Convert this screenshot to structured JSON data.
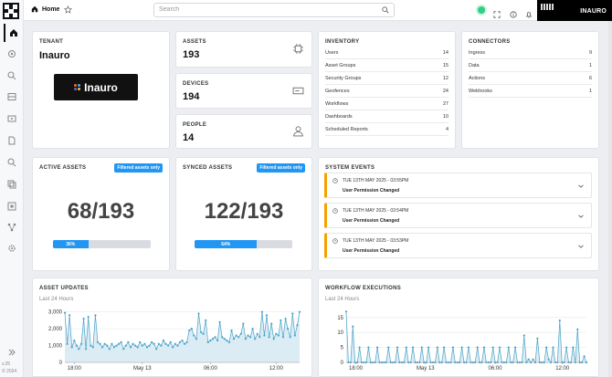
{
  "sidebar": {
    "items": [
      {
        "icon": "home-icon"
      },
      {
        "icon": "asset-icon"
      },
      {
        "icon": "search-icon"
      },
      {
        "icon": "list-icon"
      },
      {
        "icon": "screen-icon"
      },
      {
        "icon": "document-icon"
      },
      {
        "icon": "zoom-icon"
      },
      {
        "icon": "copy-icon"
      },
      {
        "icon": "grid-icon"
      },
      {
        "icon": "workflow-icon"
      },
      {
        "icon": "settings-icon"
      }
    ],
    "expand_icon": "double-chevron-icon",
    "version": "v.25",
    "copyright": "© 2024"
  },
  "topbar": {
    "home_label": "Home",
    "search_placeholder": "Search",
    "user_name": "INAURO",
    "status_color": "#2ecf86"
  },
  "tenant": {
    "title": "TENANT",
    "name": "Inauro",
    "logo_text": "Inauro"
  },
  "assets": {
    "title": "ASSETS",
    "value": "193"
  },
  "devices": {
    "title": "DEVICES",
    "value": "194"
  },
  "people": {
    "title": "PEOPLE",
    "value": "14"
  },
  "inventory": {
    "title": "INVENTORY",
    "rows": [
      {
        "label": "Users",
        "value": "14"
      },
      {
        "label": "Asset Groups",
        "value": "15"
      },
      {
        "label": "Security Groups",
        "value": "12"
      },
      {
        "label": "Geofences",
        "value": "24"
      },
      {
        "label": "Workflows",
        "value": "27"
      },
      {
        "label": "Dashboards",
        "value": "10"
      },
      {
        "label": "Scheduled Reports",
        "value": "4"
      }
    ]
  },
  "connectors": {
    "title": "CONNECTORS",
    "rows": [
      {
        "label": "Ingress",
        "value": "9"
      },
      {
        "label": "Data",
        "value": "1"
      },
      {
        "label": "Actions",
        "value": "6"
      },
      {
        "label": "Webhooks",
        "value": "1"
      }
    ]
  },
  "active_assets": {
    "title": "ACTIVE ASSETS",
    "badge": "Filtered assets only",
    "ratio": "68/193",
    "percent_label": "36%",
    "fraction": 0.36
  },
  "synced_assets": {
    "title": "SYNCED ASSETS",
    "badge": "Filtered assets only",
    "ratio": "122/193",
    "percent_label": "64%",
    "fraction": 0.64
  },
  "system_events": {
    "title": "SYSTEM EVENTS",
    "accent": "#f2a300",
    "items": [
      {
        "time": "TUE 13TH MAY 2025 - 03:55PM",
        "message": "User Permission Changed"
      },
      {
        "time": "TUE 13TH MAY 2025 - 03:54PM",
        "message": "User Permission Changed"
      },
      {
        "time": "TUE 13TH MAY 2025 - 03:53PM",
        "message": "User Permission Changed"
      }
    ]
  },
  "asset_updates": {
    "title": "ASSET UPDATES",
    "subtitle": "Last 24 Hours"
  },
  "workflow_executions": {
    "title": "WORKFLOW EXECUTIONS",
    "subtitle": "Last 24 Hours"
  },
  "chart_data": [
    {
      "type": "area",
      "title": "ASSET UPDATES",
      "color": "#4aa3c9",
      "ylim": [
        0,
        3200
      ],
      "y_ticks": [
        "0",
        "1,000",
        "2,000",
        "3,000"
      ],
      "x_ticks": [
        "18:00",
        "May 13",
        "06:00",
        "12:00"
      ],
      "grid": true,
      "values": [
        2950,
        1100,
        2800,
        900,
        1300,
        1000,
        800,
        1100,
        2600,
        800,
        2700,
        1000,
        900,
        2800,
        1200,
        1100,
        900,
        1100,
        1000,
        800,
        1100,
        900,
        1000,
        1100,
        1200,
        800,
        1000,
        1200,
        900,
        1100,
        1000,
        900,
        1200,
        1000,
        1100,
        900,
        1000,
        1200,
        1100,
        800,
        1100,
        1000,
        1300,
        1100,
        1000,
        1200,
        900,
        1100,
        1000,
        1200,
        1300,
        1100,
        1200,
        1900,
        2000,
        1600,
        1400,
        2900,
        1800,
        1700,
        2500,
        1200,
        1300,
        1400,
        1500,
        1300,
        2400,
        1500,
        1400,
        1300,
        1200,
        1900,
        1400,
        1600,
        1500,
        1700,
        2300,
        1400,
        1600,
        1500,
        2000,
        1400,
        1700,
        1500,
        3000,
        1600,
        2800,
        1500,
        2300,
        1400,
        1700,
        1600,
        2500,
        1500,
        2600,
        2000,
        1500,
        2900,
        1600,
        2200,
        3000
      ]
    },
    {
      "type": "area",
      "title": "WORKFLOW EXECUTIONS",
      "color": "#4aa3c9",
      "ylim": [
        0,
        18
      ],
      "y_ticks": [
        "0",
        "5",
        "10",
        "15"
      ],
      "x_ticks": [
        "18:00",
        "May 13",
        "06:00",
        "12:00"
      ],
      "grid": true,
      "values": [
        17,
        0,
        0,
        12,
        0,
        0,
        5,
        0,
        0,
        0,
        5,
        0,
        0,
        0,
        5,
        0,
        0,
        0,
        0,
        5,
        0,
        0,
        0,
        5,
        0,
        0,
        0,
        5,
        0,
        0,
        5,
        0,
        0,
        0,
        5,
        0,
        0,
        5,
        0,
        0,
        0,
        5,
        0,
        0,
        5,
        0,
        0,
        0,
        5,
        0,
        0,
        0,
        5,
        0,
        0,
        5,
        0,
        0,
        0,
        5,
        0,
        0,
        5,
        0,
        0,
        0,
        5,
        0,
        0,
        5,
        0,
        0,
        0,
        5,
        0,
        0,
        5,
        0,
        0,
        0,
        9,
        0,
        1,
        0,
        1,
        0,
        8,
        0,
        0,
        0,
        5,
        1,
        0,
        5,
        0,
        0,
        14,
        0,
        0,
        5,
        0,
        0,
        5,
        0,
        11,
        0,
        0,
        2,
        0
      ]
    }
  ]
}
